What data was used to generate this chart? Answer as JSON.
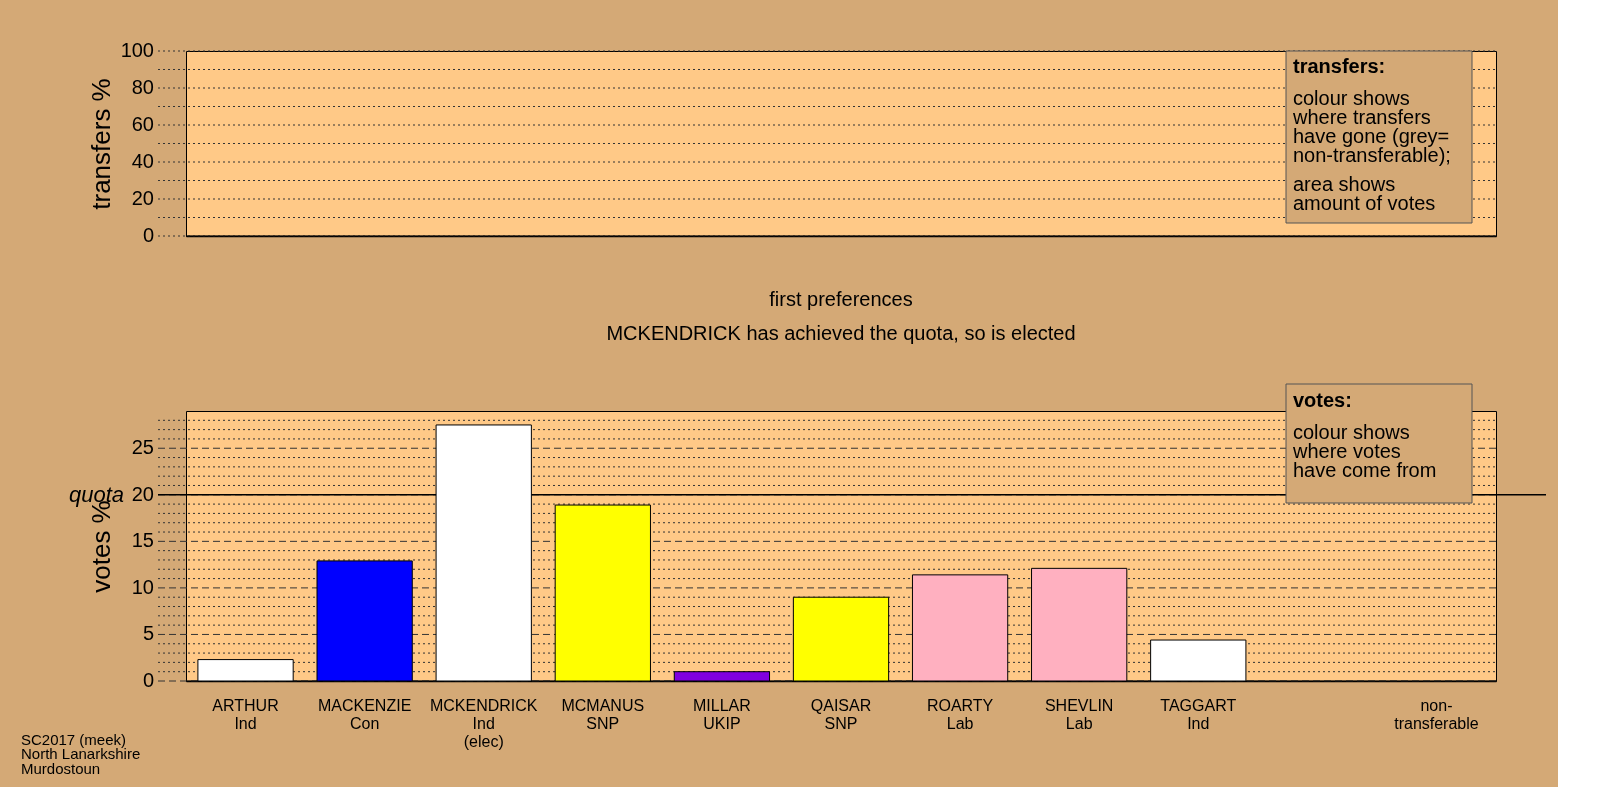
{
  "chart_data": [
    {
      "type": "bar",
      "ylabel": "transfers %",
      "ylim": [
        0,
        100
      ],
      "yticks": [
        0,
        {
          "value": 10,
          "label": null
        },
        20,
        {
          "value": 30,
          "label": null
        },
        40,
        {
          "value": 50,
          "label": null
        },
        60,
        {
          "value": 70,
          "label": null
        },
        80,
        {
          "value": 90,
          "label": null
        },
        100
      ],
      "grid": true,
      "categories": [
        null,
        null,
        null,
        null,
        null,
        null,
        null,
        null,
        null,
        null,
        null
      ],
      "values": [
        null,
        null,
        null,
        null,
        null,
        null,
        null,
        null,
        null,
        null,
        null
      ],
      "annotations": [
        "transfers:",
        "colour shows\nwhere transfers\nhave gone (grey=\nnon-transferable);",
        "area shows\namount of votes"
      ]
    },
    {
      "type": "bar",
      "title": "first preferences",
      "subtitle": "MCKENDRICK has achieved the quota, so is elected",
      "ylabel": "votes %",
      "categories": [
        "ARTHUR\nInd",
        "MACKENZIE\nCon",
        "MCKENDRICK\nInd\n(elec)",
        "MCMANUS\nSNP",
        "MILLAR\nUKIP",
        "QAISAR\nSNP",
        "ROARTY\nLab",
        "SHEVLIN\nLab",
        "TAGGART\nInd",
        null,
        "non-\ntransferable"
      ],
      "values": [
        2.3,
        12.9,
        27.5,
        18.9,
        1.0,
        9.0,
        11.4,
        12.1,
        4.4,
        null,
        null
      ],
      "colors": [
        "#ffffff",
        "#0000ff",
        "#ffffff",
        "#ffff00",
        "#8000e0",
        "#ffff00",
        "#ffb0c0",
        "#ffb0c0",
        "#ffffff",
        null,
        null
      ],
      "ylim": [
        0,
        29
      ],
      "yticks": [
        0,
        {
          "value": 1,
          "label": null
        },
        {
          "value": 2,
          "label": null
        },
        {
          "value": 3,
          "label": null
        },
        {
          "value": 4,
          "label": null
        },
        5,
        {
          "value": 6,
          "label": null
        },
        {
          "value": 7,
          "label": null
        },
        {
          "value": 8,
          "label": null
        },
        {
          "value": 9,
          "label": null
        },
        10,
        {
          "value": 11,
          "label": null
        },
        {
          "value": 12,
          "label": null
        },
        {
          "value": 13,
          "label": null
        },
        {
          "value": 14,
          "label": null
        },
        15,
        {
          "value": 16,
          "label": null
        },
        {
          "value": 17,
          "label": null
        },
        {
          "value": 18,
          "label": null
        },
        {
          "value": 19,
          "label": null
        },
        20,
        {
          "value": 21,
          "label": null
        },
        {
          "value": 22,
          "label": null
        },
        {
          "value": 23,
          "label": null
        },
        {
          "value": 24,
          "label": null
        },
        25,
        {
          "value": 26,
          "label": null
        },
        {
          "value": 27,
          "label": null
        },
        {
          "value": 28,
          "label": null
        }
      ],
      "grid": true,
      "ref_lines": [
        {
          "axis": "y",
          "value": 20,
          "label": "quota"
        }
      ],
      "annotations": [
        "votes:",
        "colour shows\nwhere votes\nhave come from",
        "SC2017 (meek)\nNorth Lanarkshire\nMurdostoun"
      ]
    }
  ]
}
